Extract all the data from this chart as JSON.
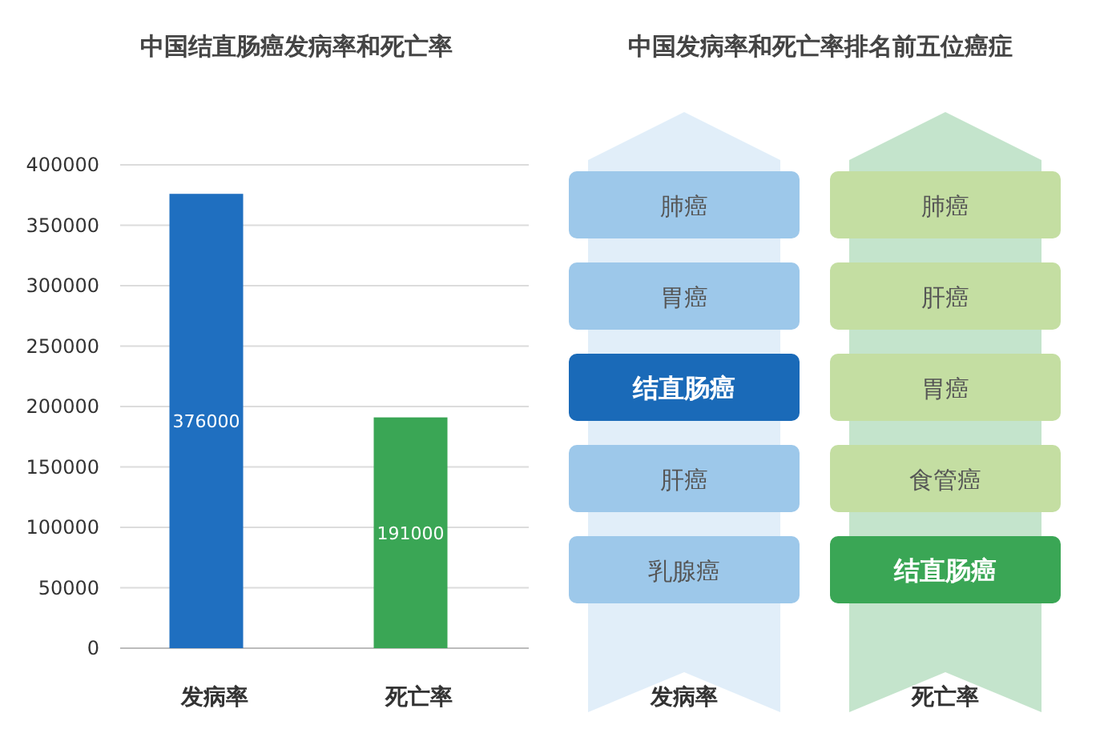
{
  "chart_data": [
    {
      "type": "bar",
      "title": "中国结直肠癌发病率和死亡率",
      "categories": [
        "发病率",
        "死亡率"
      ],
      "values": [
        376000,
        191000
      ],
      "colors": [
        "#1f6fc0",
        "#3aa655"
      ],
      "ylim": [
        0,
        400000
      ],
      "yticks": [
        0,
        50000,
        100000,
        150000,
        200000,
        250000,
        300000,
        350000,
        400000
      ],
      "grid": "y",
      "data_labels": true
    },
    {
      "type": "other",
      "title": "中国发病率和死亡率排名前五位癌症",
      "categories": [
        "发病率",
        "死亡率"
      ],
      "annotations": [
        "肺癌",
        "胃癌",
        "结直肠癌",
        "肝癌",
        "乳腺癌",
        "肺癌",
        "肝癌",
        "胃癌",
        "食管癌",
        "结直肠癌"
      ],
      "colors": [
        "#9dc8ea",
        "#9dc8ea",
        "#1a6ab8",
        "#9dc8ea",
        "#9dc8ea",
        "#c4dea2",
        "#c4dea2",
        "#c4dea2",
        "#c4dea2",
        "#3aa655"
      ]
    }
  ]
}
